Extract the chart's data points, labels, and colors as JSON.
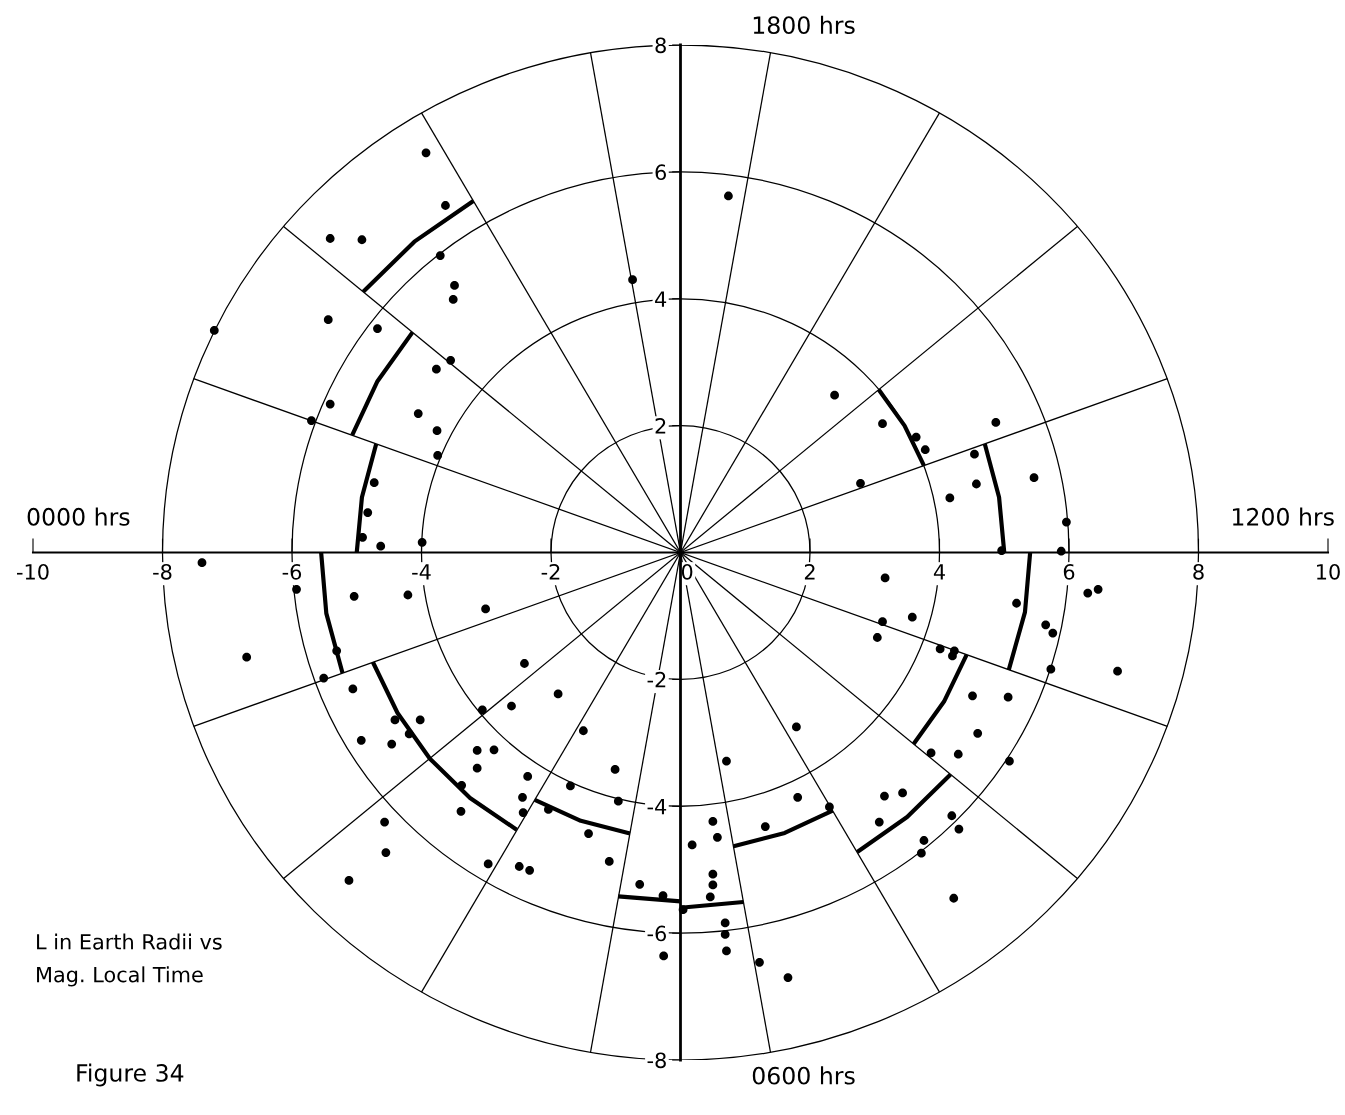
{
  "chart_data": {
    "type": "scatter",
    "xlim": [
      -10,
      10
    ],
    "ylim": [
      -8,
      8
    ],
    "xticks": [
      -10,
      -8,
      -6,
      -4,
      -2,
      0,
      2,
      4,
      6,
      8,
      10
    ],
    "yticks": [
      -8,
      -6,
      -4,
      -2,
      2,
      4,
      6,
      8
    ],
    "annotations": [
      "0000 hrs",
      "1200 hrs",
      "1800 hrs",
      "0600 hrs",
      "L in Earth Radii vs\nMag. Local Time",
      "Figure 34"
    ],
    "series": [
      {
        "color": "#000000",
        "marker": "circle",
        "x": [
          -3.93,
          -3.63,
          -5.41,
          -4.92,
          -3.71,
          -3.49,
          -3.51,
          -0.74,
          -7.2,
          -5.44,
          -4.68,
          -3.55,
          -3.77,
          -5.41,
          -5.7,
          -4.05,
          -3.76,
          -3.75,
          -4.73,
          -4.83,
          -4.91,
          -4.63,
          -3.99,
          0.74,
          2.38,
          3.12,
          3.64,
          3.78,
          2.78,
          4.87,
          4.54,
          4.57,
          4.16,
          5.46,
          5.96,
          4.96,
          5.88,
          3.16,
          5.19,
          6.29,
          6.45,
          3.58,
          3.12,
          3.04,
          5.64,
          5.75,
          4.01,
          4.23,
          4.2,
          5.72,
          6.75,
          4.51,
          5.06,
          4.59,
          3.87,
          4.29,
          5.08,
          1.79,
          0.71,
          3.15,
          3.43,
          1.81,
          2.3,
          3.07,
          4.19,
          4.3,
          3.76,
          3.72,
          4.22,
          1.31,
          0.5,
          0.57,
          0.18,
          0.5,
          0.5,
          0.46,
          0.04,
          0.69,
          0.69,
          0.71,
          1.22,
          1.66,
          -7.39,
          -5.93,
          -5.04,
          -4.21,
          -3.01,
          -6.7,
          -5.31,
          -5.51,
          -5.06,
          -2.41,
          -1.89,
          -2.61,
          -3.06,
          -4.41,
          -4.02,
          -4.19,
          -4.93,
          -4.46,
          -1.5,
          -3.14,
          -2.88,
          -3.14,
          -2.36,
          -1.01,
          -3.38,
          -1.7,
          -2.44,
          -0.96,
          -3.39,
          -2.43,
          -2.04,
          -4.57,
          -1.42,
          -4.55,
          -2.97,
          -2.49,
          -2.33,
          -1.1,
          -5.12,
          -0.63,
          -0.27,
          -0.26
        ],
        "values": [
          6.3,
          5.47,
          4.95,
          4.93,
          4.68,
          4.21,
          3.99,
          4.3,
          3.5,
          3.67,
          3.53,
          3.03,
          2.89,
          2.34,
          2.08,
          2.19,
          1.92,
          1.53,
          1.1,
          0.63,
          0.24,
          0.1,
          0.16,
          5.62,
          2.48,
          2.03,
          1.82,
          1.62,
          1.09,
          2.05,
          1.55,
          1.08,
          0.86,
          1.18,
          0.48,
          0.03,
          0.02,
          -0.4,
          -0.8,
          -0.64,
          -0.58,
          -1.02,
          -1.09,
          -1.34,
          -1.14,
          -1.27,
          -1.52,
          -1.55,
          -1.63,
          -1.84,
          -1.87,
          -2.26,
          -2.28,
          -2.85,
          -3.16,
          -3.18,
          -3.29,
          -2.75,
          -3.29,
          -3.84,
          -3.79,
          -3.86,
          -4.01,
          -4.25,
          -4.15,
          -4.36,
          -4.54,
          -4.74,
          -5.45,
          -4.32,
          -4.24,
          -4.49,
          -4.61,
          -5.07,
          -5.24,
          -5.43,
          -5.63,
          -5.84,
          -6.02,
          -6.28,
          -6.46,
          -6.7,
          -0.16,
          -0.58,
          -0.69,
          -0.67,
          -0.89,
          -1.65,
          -1.55,
          -1.98,
          -2.15,
          -1.75,
          -2.23,
          -2.42,
          -2.48,
          -2.64,
          -2.64,
          -2.86,
          -2.96,
          -3.02,
          -2.81,
          -3.12,
          -3.11,
          -3.4,
          -3.53,
          -3.42,
          -3.67,
          -3.68,
          -3.86,
          -3.92,
          -4.08,
          -4.1,
          -4.05,
          -4.25,
          -4.43,
          -4.73,
          -4.91,
          -4.95,
          -5.01,
          -4.87,
          -5.17,
          -5.23,
          -5.41,
          -6.36
        ]
      },
      {
        "type": "line",
        "color": "#000000",
        "x": [
          -3.2,
          -4.11,
          -4.9,
          null,
          -4.14,
          -4.68,
          -5.07,
          null,
          -4.7,
          -4.92,
          -5.0,
          null,
          3.76,
          3.46,
          3.06,
          null,
          5.0,
          4.92,
          4.7,
          null,
          5.4,
          5.32,
          5.07,
          null,
          4.42,
          4.07,
          3.6,
          null,
          4.17,
          3.5,
          2.73,
          null,
          2.35,
          1.61,
          0.82,
          null,
          0.97,
          0.0,
          null,
          0.0,
          -0.96,
          null,
          -0.78,
          -1.54,
          -2.25,
          null,
          -2.53,
          -3.25,
          -3.87,
          -4.37,
          -4.75,
          null,
          -5.22,
          -5.47,
          -5.55
        ],
        "values": [
          5.54,
          4.9,
          4.11,
          null,
          3.47,
          2.7,
          1.85,
          null,
          1.71,
          0.87,
          0.0,
          null,
          1.37,
          2.0,
          2.57,
          null,
          0.0,
          0.87,
          1.71,
          null,
          0.0,
          -0.94,
          -1.85,
          null,
          -1.61,
          -2.35,
          -3.02,
          null,
          -3.5,
          -4.17,
          -4.72,
          null,
          -4.07,
          -4.42,
          -4.63,
          null,
          -5.51,
          -5.6,
          null,
          -5.5,
          -5.42,
          null,
          -4.43,
          -4.23,
          -3.9,
          null,
          -4.37,
          -3.87,
          -3.25,
          -2.53,
          -1.73,
          null,
          -1.9,
          -0.96,
          0.0
        ]
      },
      {
        "type": "line",
        "color": "#000000",
        "x": [
          -7.52,
          7.52
        ],
        "values": [
          -2.74,
          2.74
        ]
      },
      {
        "type": "line",
        "color": "#000000",
        "x": [
          -6.13,
          6.13
        ],
        "values": [
          -5.14,
          5.14
        ]
      },
      {
        "type": "line",
        "color": "#000000",
        "x": [
          -4.0,
          4.0
        ],
        "values": [
          -6.93,
          6.93
        ]
      },
      {
        "type": "line",
        "color": "#000000",
        "x": [
          -1.39,
          1.39
        ],
        "values": [
          -7.88,
          7.88
        ]
      },
      {
        "type": "line",
        "color": "#000000",
        "x": [
          -1.39,
          1.39
        ],
        "values": [
          7.88,
          -7.88
        ]
      },
      {
        "type": "line",
        "color": "#000000",
        "x": [
          -4.0,
          4.0
        ],
        "values": [
          6.93,
          -6.93
        ]
      },
      {
        "type": "line",
        "color": "#000000",
        "x": [
          -6.13,
          6.13
        ],
        "values": [
          5.14,
          -5.14
        ]
      },
      {
        "type": "line",
        "color": "#000000",
        "x": [
          -7.52,
          7.52
        ],
        "values": [
          2.74,
          -2.74
        ]
      }
    ]
  }
}
